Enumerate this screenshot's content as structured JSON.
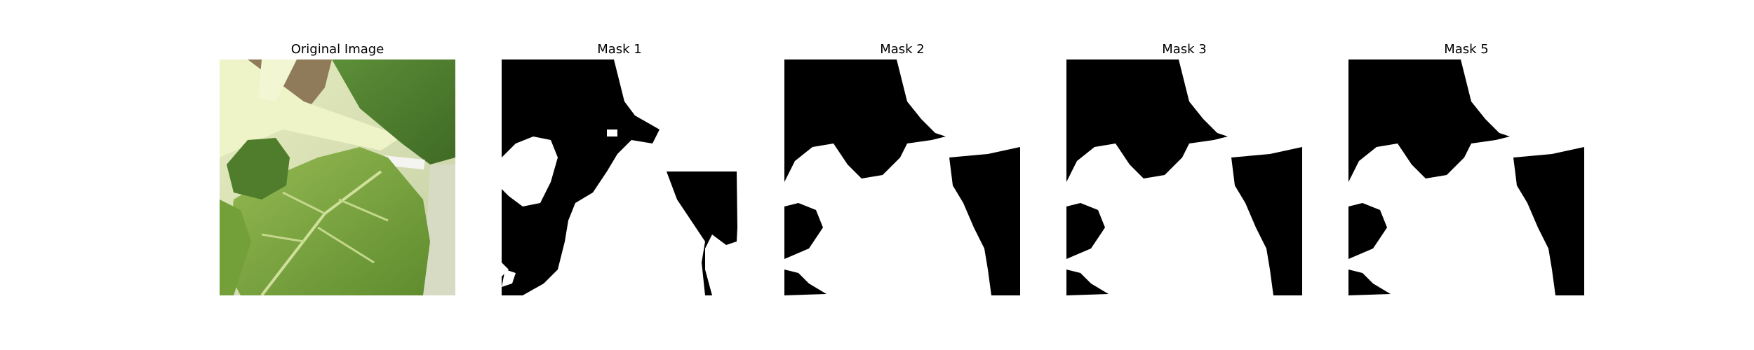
{
  "figure": {
    "panels": [
      {
        "title": "Original Image",
        "content": "leaf-photo"
      },
      {
        "title": "Mask 1",
        "content": "binary-mask"
      },
      {
        "title": "Mask 2",
        "content": "binary-mask"
      },
      {
        "title": "Mask 3",
        "content": "binary-mask"
      },
      {
        "title": "Mask 5",
        "content": "binary-mask"
      }
    ],
    "colors": {
      "mask_foreground": "#ffffff",
      "mask_background": "#000000",
      "leaf_green": "#7fa640",
      "stem_pale": "#e9f0c0"
    }
  }
}
